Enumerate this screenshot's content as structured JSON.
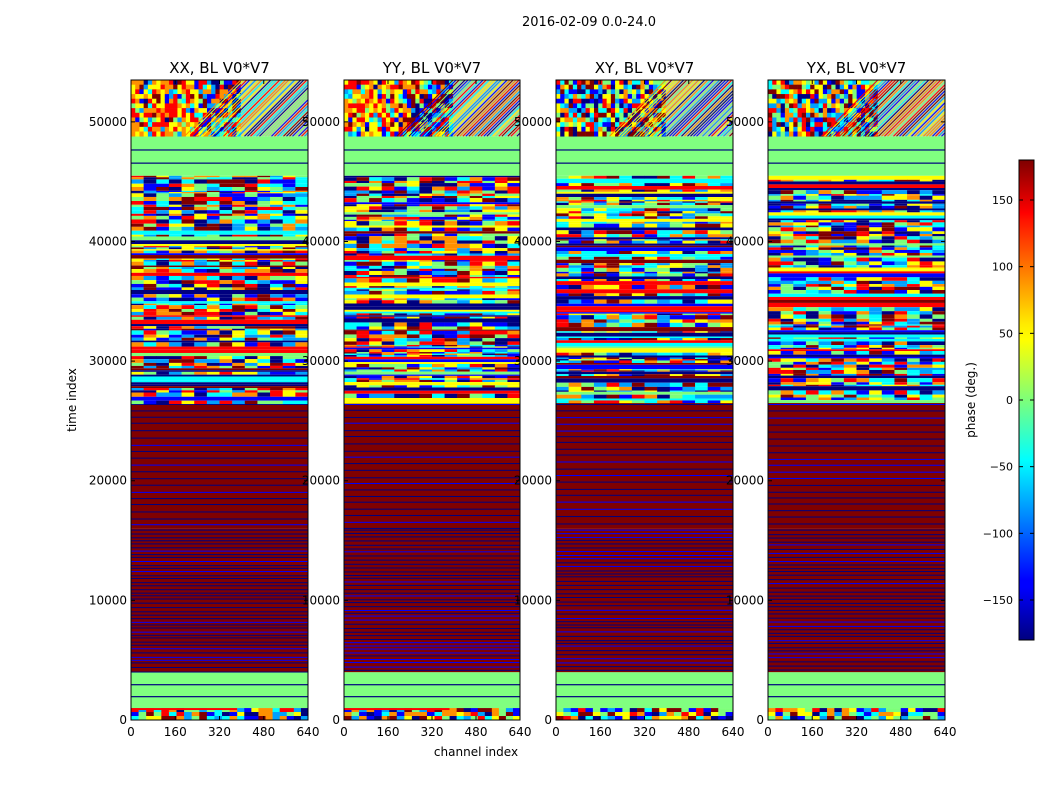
{
  "chart_data": {
    "type": "heatmap",
    "suptitle": "2016-02-09 0.0-24.0",
    "xlabel": "channel index",
    "ylabel": "time index",
    "xlim": [
      0,
      640
    ],
    "ylim": [
      0,
      53500
    ],
    "x_ticks": [
      0,
      160,
      320,
      480,
      640
    ],
    "y_ticks": [
      0,
      10000,
      20000,
      30000,
      40000,
      50000
    ],
    "panels": [
      {
        "title": "XX, BL V0*V7",
        "low_band": "partial-red"
      },
      {
        "title": "YY, BL V0*V7",
        "low_band": "partial-red"
      },
      {
        "title": "XY, BL V0*V7",
        "low_band": "noise"
      },
      {
        "title": "YX, BL V0*V7",
        "low_band": "noise"
      }
    ],
    "regions": [
      {
        "from": 0,
        "to": 1000,
        "pattern": "noise"
      },
      {
        "from": 1000,
        "to": 4000,
        "pattern": "flat",
        "phase": 0
      },
      {
        "from": 4000,
        "to": 16000,
        "pattern": "dense-stripes",
        "phase": 180
      },
      {
        "from": 16000,
        "to": 26500,
        "pattern": "sparse-stripes",
        "phase": 180
      },
      {
        "from": 26500,
        "to": 45500,
        "pattern": "mixed-stripes"
      },
      {
        "from": 45500,
        "to": 48800,
        "pattern": "flat",
        "phase": 0
      },
      {
        "from": 48800,
        "to": 53500,
        "pattern": "noise-fringes"
      }
    ],
    "colorbar": {
      "label": "phase (deg.)",
      "range": [
        -180,
        180
      ],
      "ticks": [
        -150,
        -100,
        -50,
        0,
        50,
        100,
        150
      ],
      "colormap": "jet"
    }
  }
}
